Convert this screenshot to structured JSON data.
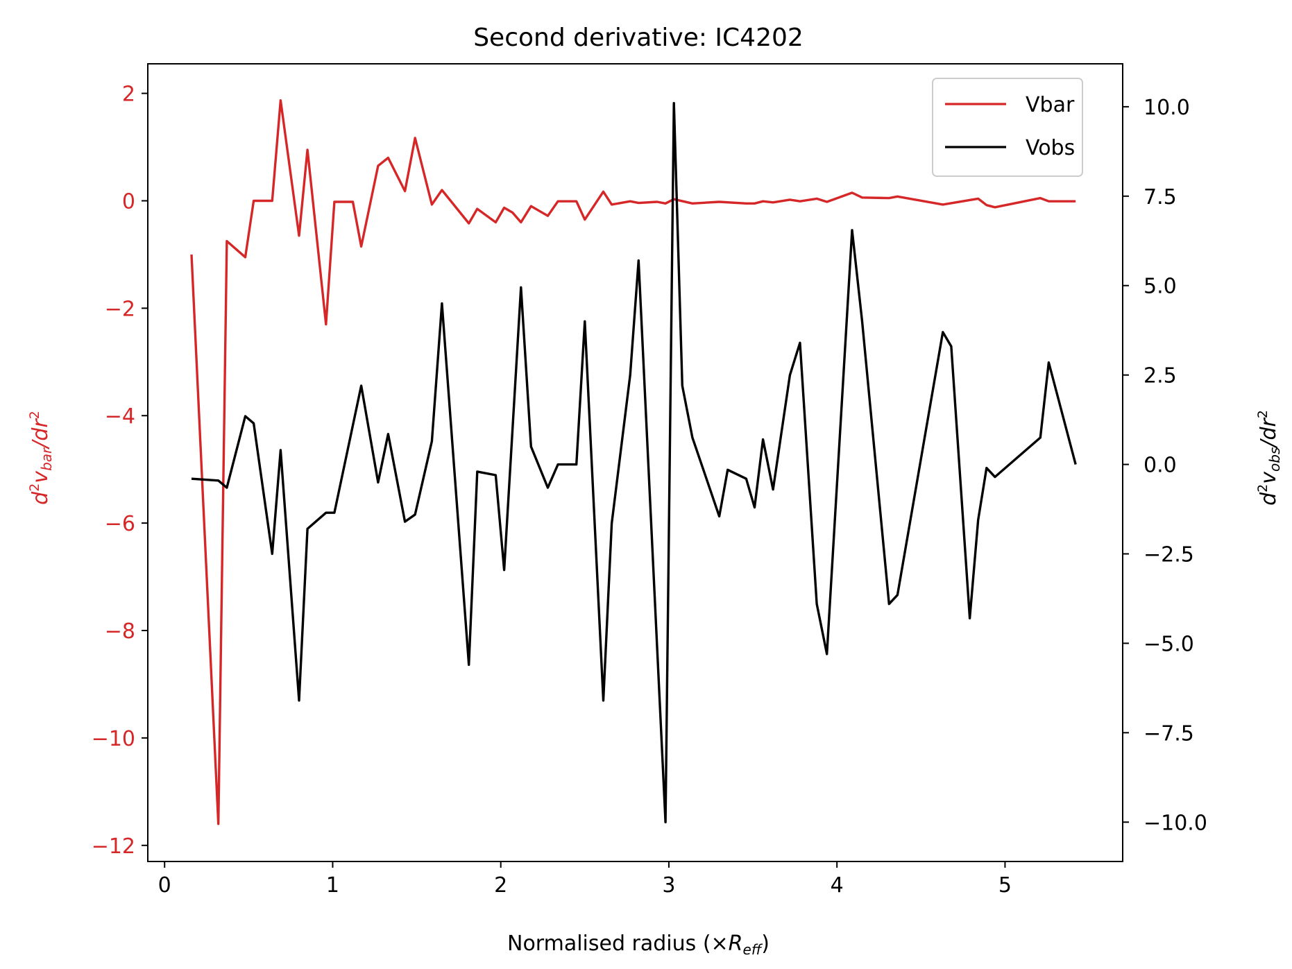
{
  "chart_data": {
    "type": "line",
    "title": "Second derivative: IC4202",
    "xlabel": "Normalised radius (×R_eff)",
    "xlabel_parts": {
      "prefix": "Normalised radius (×",
      "sym": "R",
      "sub": "eff",
      "suffix": ")"
    },
    "ylabel_left": "d²v_bar/dr²",
    "ylabel_right": "d²v_obs/dr²",
    "xlim": [
      -0.1,
      5.7
    ],
    "ylim_left": [
      -12.3,
      2.55
    ],
    "ylim_right": [
      -11.1,
      11.2
    ],
    "xticks": [
      0,
      1,
      2,
      3,
      4,
      5
    ],
    "yticks_left": [
      2,
      0,
      -2,
      -4,
      -6,
      -8,
      -10,
      -12
    ],
    "yticks_right": [
      10.0,
      7.5,
      5.0,
      2.5,
      0.0,
      -2.5,
      -5.0,
      -7.5,
      -10.0
    ],
    "legend_position": "top-right",
    "grid": false,
    "colors": {
      "vbar": "#d62728",
      "vobs": "#000000",
      "axis": "#000000"
    },
    "series": [
      {
        "name": "Vbar",
        "axis": "left",
        "x": [
          0.16,
          0.32,
          0.37,
          0.48,
          0.53,
          0.64,
          0.69,
          0.8,
          0.85,
          0.96,
          1.01,
          1.12,
          1.17,
          1.27,
          1.33,
          1.43,
          1.49,
          1.59,
          1.65,
          1.81,
          1.86,
          1.97,
          2.02,
          2.07,
          2.12,
          2.18,
          2.28,
          2.34,
          2.45,
          2.5,
          2.61,
          2.66,
          2.77,
          2.82,
          2.93,
          2.98,
          3.03,
          3.14,
          3.3,
          3.46,
          3.51,
          3.56,
          3.62,
          3.72,
          3.78,
          3.88,
          3.94,
          4.09,
          4.15,
          4.31,
          4.36,
          4.63,
          4.84,
          4.89,
          4.94,
          5.21,
          5.26,
          5.42
        ],
        "y": [
          -1.0,
          -11.6,
          -0.75,
          -1.05,
          0.0,
          0.0,
          1.87,
          -0.65,
          0.95,
          -2.3,
          -0.02,
          -0.02,
          -0.85,
          0.65,
          0.8,
          0.18,
          1.17,
          -0.07,
          0.2,
          -0.42,
          -0.15,
          -0.4,
          -0.13,
          -0.22,
          -0.4,
          -0.1,
          -0.28,
          -0.01,
          -0.01,
          -0.35,
          0.17,
          -0.07,
          -0.01,
          -0.04,
          -0.02,
          -0.05,
          0.03,
          -0.05,
          -0.02,
          -0.05,
          -0.05,
          -0.01,
          -0.03,
          0.02,
          -0.01,
          0.04,
          -0.02,
          0.15,
          0.06,
          0.05,
          0.08,
          -0.07,
          0.04,
          -0.08,
          -0.12,
          0.05,
          -0.01,
          -0.01
        ]
      },
      {
        "name": "Vobs",
        "axis": "right",
        "x": [
          0.16,
          0.32,
          0.37,
          0.48,
          0.53,
          0.64,
          0.69,
          0.8,
          0.85,
          0.96,
          1.01,
          1.17,
          1.27,
          1.33,
          1.43,
          1.49,
          1.59,
          1.65,
          1.81,
          1.86,
          1.97,
          2.02,
          2.12,
          2.18,
          2.28,
          2.34,
          2.45,
          2.5,
          2.61,
          2.66,
          2.77,
          2.82,
          2.98,
          3.03,
          3.08,
          3.14,
          3.3,
          3.35,
          3.46,
          3.51,
          3.56,
          3.62,
          3.72,
          3.78,
          3.88,
          3.94,
          4.09,
          4.15,
          4.31,
          4.36,
          4.63,
          4.68,
          4.79,
          4.84,
          4.89,
          4.94,
          5.21,
          5.26,
          5.42
        ],
        "y": [
          -0.4,
          -0.45,
          -0.65,
          1.35,
          1.15,
          -2.5,
          0.4,
          -6.6,
          -1.8,
          -1.35,
          -1.35,
          2.2,
          -0.5,
          0.85,
          -1.6,
          -1.4,
          0.65,
          4.5,
          -5.6,
          -0.2,
          -0.3,
          -2.95,
          4.95,
          0.5,
          -0.65,
          0.0,
          0.0,
          4.0,
          -6.6,
          -1.65,
          2.5,
          5.7,
          -10.0,
          10.1,
          2.2,
          0.75,
          -1.45,
          -0.15,
          -0.4,
          -1.2,
          0.7,
          -0.7,
          2.5,
          3.4,
          -3.9,
          -5.3,
          6.55,
          4.0,
          -3.9,
          -3.65,
          3.7,
          3.3,
          -4.3,
          -1.55,
          -0.1,
          -0.35,
          0.75,
          2.85,
          0.0
        ]
      }
    ]
  }
}
